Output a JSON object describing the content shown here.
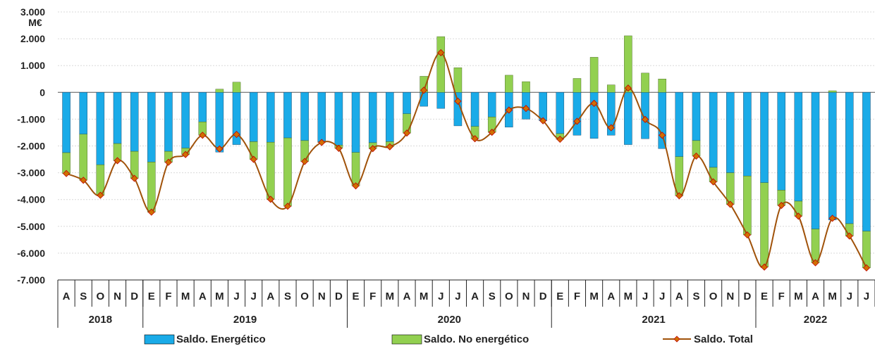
{
  "chart_data": {
    "type": "bar",
    "unit": "M€",
    "ylim": [
      -7000,
      3000
    ],
    "yticks": [
      3000,
      2000,
      1000,
      0,
      -1000,
      -2000,
      -3000,
      -4000,
      -5000,
      -6000,
      -7000
    ],
    "ytick_labels": [
      "3.000",
      "2.000",
      "1.000",
      "0",
      "-1.000",
      "-2.000",
      "-3.000",
      "-4.000",
      "-5.000",
      "-6.000",
      "-7.000"
    ],
    "grid": true,
    "stacked": true,
    "legend_position": "bottom",
    "categories": [
      "A",
      "S",
      "O",
      "N",
      "D",
      "E",
      "F",
      "M",
      "A",
      "M",
      "J",
      "J",
      "A",
      "S",
      "O",
      "N",
      "D",
      "E",
      "F",
      "M",
      "A",
      "M",
      "J",
      "J",
      "A",
      "S",
      "O",
      "N",
      "D",
      "E",
      "F",
      "M",
      "A",
      "M",
      "J",
      "J",
      "A",
      "S",
      "O",
      "N",
      "D",
      "E",
      "F",
      "M",
      "A",
      "M",
      "J",
      "J"
    ],
    "years": [
      {
        "label": "2018",
        "start": 0,
        "count": 5
      },
      {
        "label": "2019",
        "start": 5,
        "count": 12
      },
      {
        "label": "2020",
        "start": 17,
        "count": 12
      },
      {
        "label": "2021",
        "start": 29,
        "count": 12
      },
      {
        "label": "2022",
        "start": 41,
        "count": 7
      }
    ],
    "series": [
      {
        "name": "Saldo. Energético",
        "color": "#1aabe8",
        "kind": "bar",
        "values": [
          -2250,
          -1560,
          -2700,
          -1910,
          -2200,
          -2600,
          -2200,
          -2080,
          -1100,
          -2230,
          -1950,
          -1840,
          -1860,
          -1700,
          -1800,
          -1850,
          -1970,
          -2240,
          -1880,
          -1840,
          -800,
          -520,
          -600,
          -1250,
          -1270,
          -920,
          -1300,
          -1000,
          -1060,
          -1540,
          -1600,
          -1720,
          -1600,
          -1950,
          -1730,
          -2100,
          -2400,
          -1800,
          -2800,
          -3000,
          -3120,
          -3370,
          -3650,
          -4060,
          -5100,
          -4760,
          -4900,
          -5180
        ]
      },
      {
        "name": "Saldo. No energético",
        "color": "#92d050",
        "kind": "bar",
        "values": [
          -780,
          -1720,
          -1140,
          -640,
          -1010,
          -1870,
          -410,
          -240,
          -500,
          120,
          380,
          -660,
          -2130,
          -2550,
          -780,
          -20,
          -120,
          -1250,
          -220,
          -190,
          -720,
          600,
          2080,
          920,
          -460,
          -570,
          640,
          400,
          0,
          -210,
          520,
          1310,
          280,
          2110,
          720,
          500,
          -1460,
          -580,
          -540,
          -1180,
          -2200,
          -3150,
          -570,
          -560,
          -1260,
          60,
          -460,
          -1370
        ]
      },
      {
        "name": "Saldo. Total",
        "color": "#a0520a",
        "marker_color": "#c00000",
        "kind": "line",
        "values": [
          -3030,
          -3280,
          -3840,
          -2550,
          -3210,
          -4470,
          -2610,
          -2320,
          -1600,
          -2110,
          -1570,
          -2500,
          -3990,
          -4250,
          -2580,
          -1870,
          -2090,
          -3490,
          -2100,
          -2030,
          -1520,
          80,
          1480,
          -330,
          -1730,
          -1490,
          -660,
          -600,
          -1060,
          -1750,
          -1080,
          -410,
          -1320,
          160,
          -1010,
          -1600,
          -3860,
          -2380,
          -3340,
          -4180,
          -5320,
          -6520,
          -4220,
          -4620,
          -6360,
          -4700,
          -5360,
          -6550
        ]
      }
    ]
  },
  "legend": {
    "energetico": "Saldo. Energético",
    "no_energetico": "Saldo. No energético",
    "total": "Saldo. Total"
  }
}
